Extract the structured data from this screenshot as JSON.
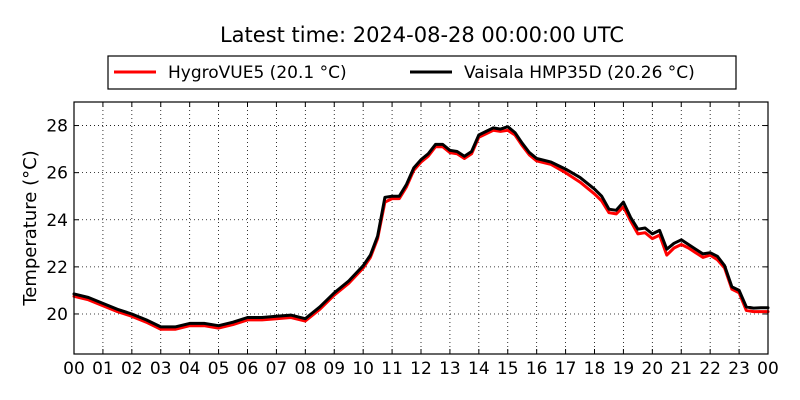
{
  "chart_data": {
    "type": "line",
    "title": "Latest time: 2024-08-28 00:00:00 UTC",
    "ylabel": "Temperature (°C)",
    "xlabel": "",
    "xlim": [
      0,
      24
    ],
    "ylim": [
      18.3,
      29.0
    ],
    "x_ticks": [
      0,
      1,
      2,
      3,
      4,
      5,
      6,
      7,
      8,
      9,
      10,
      11,
      12,
      13,
      14,
      15,
      16,
      17,
      18,
      19,
      20,
      21,
      22,
      23,
      24
    ],
    "x_tick_labels": [
      "00",
      "01",
      "02",
      "03",
      "04",
      "05",
      "06",
      "07",
      "08",
      "09",
      "10",
      "11",
      "12",
      "13",
      "14",
      "15",
      "16",
      "17",
      "18",
      "19",
      "20",
      "21",
      "22",
      "23",
      "00"
    ],
    "y_ticks": [
      20,
      22,
      24,
      26,
      28
    ],
    "y_tick_labels": [
      "20",
      "22",
      "24",
      "26",
      "28"
    ],
    "grid": true,
    "legend_position": "top-center",
    "series": [
      {
        "name": "HygroVUE5 (20.1 °C)",
        "color": "#ff0000",
        "x": [
          0,
          0.5,
          1,
          1.5,
          2,
          2.5,
          3,
          3.5,
          4,
          4.5,
          5,
          5.5,
          6,
          6.5,
          7,
          7.5,
          8,
          8.5,
          9,
          9.5,
          10,
          10.25,
          10.5,
          10.75,
          11,
          11.25,
          11.5,
          11.75,
          12,
          12.25,
          12.5,
          12.75,
          13,
          13.25,
          13.5,
          13.75,
          14,
          14.25,
          14.5,
          14.75,
          15,
          15.25,
          15.5,
          15.75,
          16,
          16.5,
          17,
          17.5,
          18,
          18.25,
          18.5,
          18.75,
          19,
          19.25,
          19.5,
          19.75,
          20,
          20.25,
          20.5,
          20.75,
          21,
          21.25,
          21.5,
          21.75,
          22,
          22.25,
          22.5,
          22.75,
          23,
          23.25,
          23.5,
          23.75,
          24
        ],
        "y": [
          20.75,
          20.6,
          20.35,
          20.1,
          19.9,
          19.65,
          19.35,
          19.35,
          19.5,
          19.5,
          19.4,
          19.55,
          19.75,
          19.75,
          19.8,
          19.85,
          19.7,
          20.2,
          20.8,
          21.3,
          21.95,
          22.4,
          23.2,
          24.75,
          24.9,
          24.9,
          25.4,
          26.1,
          26.45,
          26.7,
          27.1,
          27.1,
          26.85,
          26.8,
          26.6,
          26.8,
          27.5,
          27.65,
          27.8,
          27.75,
          27.8,
          27.6,
          27.15,
          26.75,
          26.5,
          26.35,
          26.0,
          25.6,
          25.1,
          24.8,
          24.3,
          24.25,
          24.55,
          23.95,
          23.4,
          23.45,
          23.2,
          23.35,
          22.5,
          22.8,
          22.95,
          22.8,
          22.6,
          22.4,
          22.5,
          22.3,
          21.95,
          21.05,
          20.9,
          20.15,
          20.1,
          20.1,
          20.1
        ]
      },
      {
        "name": "Vaisala HMP35D (20.26 °C)",
        "color": "#000000",
        "x": [
          0,
          0.5,
          1,
          1.5,
          2,
          2.5,
          3,
          3.5,
          4,
          4.5,
          5,
          5.5,
          6,
          6.5,
          7,
          7.5,
          8,
          8.5,
          9,
          9.5,
          10,
          10.25,
          10.5,
          10.75,
          11,
          11.25,
          11.5,
          11.75,
          12,
          12.25,
          12.5,
          12.75,
          13,
          13.25,
          13.5,
          13.75,
          14,
          14.25,
          14.5,
          14.75,
          15,
          15.25,
          15.5,
          15.75,
          16,
          16.5,
          17,
          17.5,
          18,
          18.25,
          18.5,
          18.75,
          19,
          19.25,
          19.5,
          19.75,
          20,
          20.25,
          20.5,
          20.75,
          21,
          21.25,
          21.5,
          21.75,
          22,
          22.25,
          22.5,
          22.75,
          23,
          23.25,
          23.5,
          23.75,
          24
        ],
        "y": [
          20.85,
          20.7,
          20.45,
          20.2,
          20.0,
          19.75,
          19.45,
          19.45,
          19.6,
          19.6,
          19.5,
          19.65,
          19.85,
          19.85,
          19.9,
          19.95,
          19.8,
          20.3,
          20.9,
          21.4,
          22.05,
          22.5,
          23.3,
          24.95,
          25.0,
          25.0,
          25.5,
          26.2,
          26.55,
          26.8,
          27.2,
          27.2,
          26.95,
          26.9,
          26.7,
          26.9,
          27.6,
          27.75,
          27.9,
          27.85,
          27.95,
          27.7,
          27.25,
          26.85,
          26.6,
          26.45,
          26.15,
          25.8,
          25.3,
          25.0,
          24.45,
          24.4,
          24.75,
          24.1,
          23.6,
          23.65,
          23.4,
          23.55,
          22.75,
          23.0,
          23.15,
          22.95,
          22.75,
          22.55,
          22.6,
          22.45,
          22.05,
          21.15,
          21.0,
          20.3,
          20.25,
          20.26,
          20.26
        ]
      }
    ]
  }
}
